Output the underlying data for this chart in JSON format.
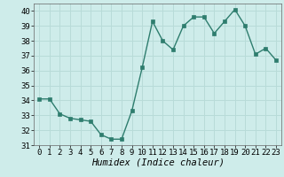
{
  "x": [
    0,
    1,
    2,
    3,
    4,
    5,
    6,
    7,
    8,
    9,
    10,
    11,
    12,
    13,
    14,
    15,
    16,
    17,
    18,
    19,
    20,
    21,
    22,
    23
  ],
  "y": [
    34.1,
    34.1,
    33.1,
    32.8,
    32.7,
    32.6,
    31.7,
    31.4,
    31.4,
    33.3,
    36.2,
    39.3,
    38.0,
    37.4,
    39.0,
    39.6,
    39.6,
    38.5,
    39.3,
    40.1,
    39.0,
    37.1,
    37.5,
    36.7
  ],
  "line_color": "#2e7d6e",
  "marker": "s",
  "markersize": 2.5,
  "linewidth": 1.0,
  "xlabel": "Humidex (Indice chaleur)",
  "xlim": [
    -0.5,
    23.5
  ],
  "ylim": [
    31,
    40.5
  ],
  "yticks": [
    31,
    32,
    33,
    34,
    35,
    36,
    37,
    38,
    39,
    40
  ],
  "xticks": [
    0,
    1,
    2,
    3,
    4,
    5,
    6,
    7,
    8,
    9,
    10,
    11,
    12,
    13,
    14,
    15,
    16,
    17,
    18,
    19,
    20,
    21,
    22,
    23
  ],
  "bg_color": "#ceecea",
  "grid_color": "#b8dbd8",
  "tick_fontsize": 6.5,
  "xlabel_fontsize": 7.5
}
